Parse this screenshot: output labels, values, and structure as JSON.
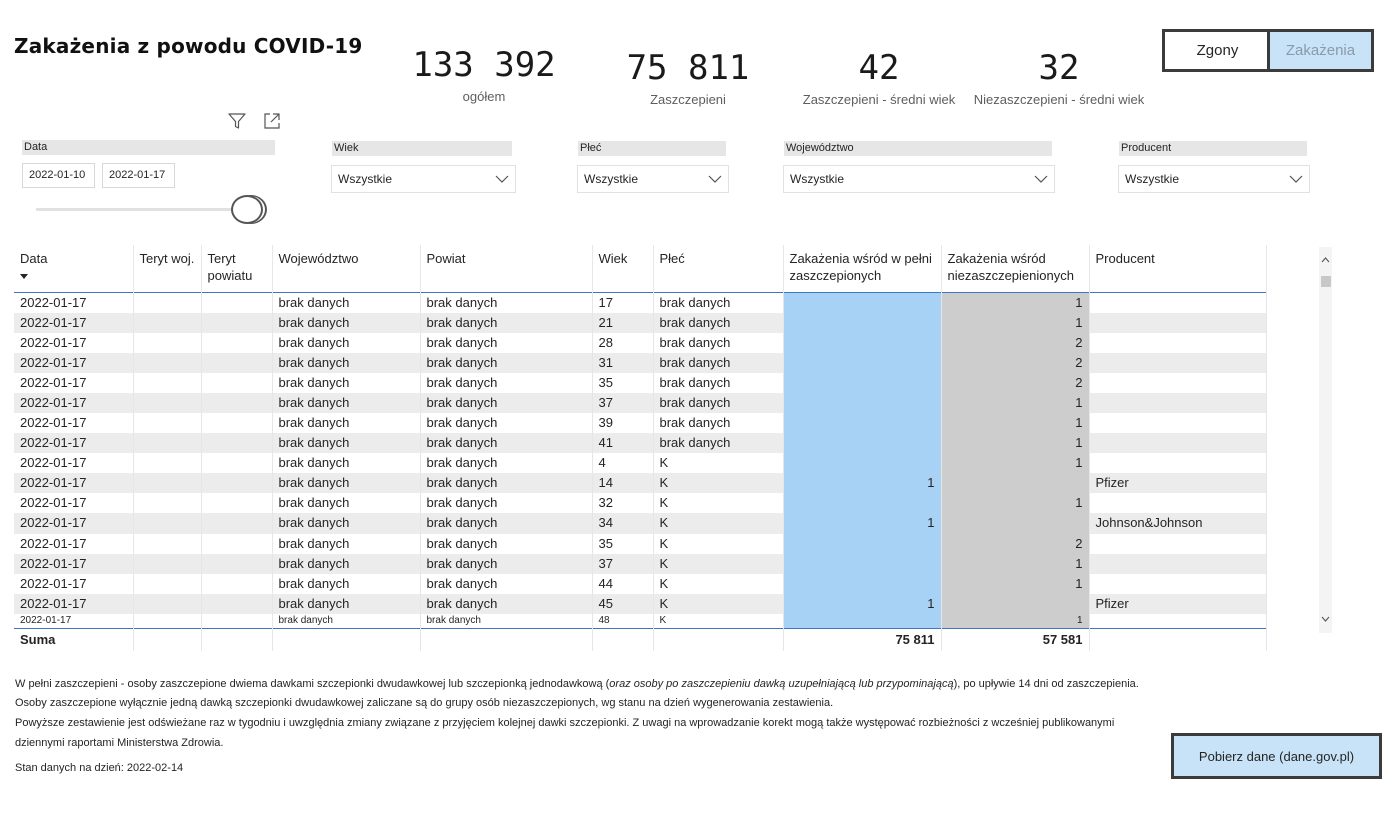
{
  "title": "Zakażenia z powodu COVID-19",
  "kpis": [
    {
      "value": "133 392",
      "label": "ogółem"
    },
    {
      "value": "75 811",
      "label": "Zaszczepieni"
    },
    {
      "value": "42",
      "label": "Zaszczepieni - średni wiek"
    },
    {
      "value": "32",
      "label": "Niezaszczepieni - średni wiek"
    }
  ],
  "toggle": {
    "left": "Zgony",
    "right": "Zakażenia",
    "active": "Zakażenia"
  },
  "icons": {
    "filter": "filter-icon",
    "focus": "focus-mode-icon"
  },
  "slicers": {
    "date": {
      "label": "Data",
      "from": "2022-01-10",
      "to": "2022-01-17"
    },
    "age": {
      "label": "Wiek",
      "value": "Wszystkie"
    },
    "sex": {
      "label": "Płeć",
      "value": "Wszystkie"
    },
    "voivodeship": {
      "label": "Województwo",
      "value": "Wszystkie"
    },
    "producer": {
      "label": "Producent",
      "value": "Wszystkie"
    }
  },
  "table": {
    "columns": [
      "Data",
      "Teryt woj.",
      "Teryt powiatu",
      "Województwo",
      "Powiat",
      "Wiek",
      "Płeć",
      "Zakażenia wśród w pełni zaszczepionych",
      "Zakażenia wśród niezaszczepienionych",
      "Producent"
    ],
    "rows": [
      [
        "2022-01-17",
        "",
        "",
        "brak danych",
        "brak danych",
        "17",
        "brak danych",
        "",
        "1",
        ""
      ],
      [
        "2022-01-17",
        "",
        "",
        "brak danych",
        "brak danych",
        "21",
        "brak danych",
        "",
        "1",
        ""
      ],
      [
        "2022-01-17",
        "",
        "",
        "brak danych",
        "brak danych",
        "28",
        "brak danych",
        "",
        "2",
        ""
      ],
      [
        "2022-01-17",
        "",
        "",
        "brak danych",
        "brak danych",
        "31",
        "brak danych",
        "",
        "2",
        ""
      ],
      [
        "2022-01-17",
        "",
        "",
        "brak danych",
        "brak danych",
        "35",
        "brak danych",
        "",
        "2",
        ""
      ],
      [
        "2022-01-17",
        "",
        "",
        "brak danych",
        "brak danych",
        "37",
        "brak danych",
        "",
        "1",
        ""
      ],
      [
        "2022-01-17",
        "",
        "",
        "brak danych",
        "brak danych",
        "39",
        "brak danych",
        "",
        "1",
        ""
      ],
      [
        "2022-01-17",
        "",
        "",
        "brak danych",
        "brak danych",
        "41",
        "brak danych",
        "",
        "1",
        ""
      ],
      [
        "2022-01-17",
        "",
        "",
        "brak danych",
        "brak danych",
        "4",
        "K",
        "",
        "1",
        ""
      ],
      [
        "2022-01-17",
        "",
        "",
        "brak danych",
        "brak danych",
        "14",
        "K",
        "1",
        "",
        "Pfizer"
      ],
      [
        "2022-01-17",
        "",
        "",
        "brak danych",
        "brak danych",
        "32",
        "K",
        "",
        "1",
        ""
      ],
      [
        "2022-01-17",
        "",
        "",
        "brak danych",
        "brak danych",
        "34",
        "K",
        "1",
        "",
        "Johnson&Johnson"
      ],
      [
        "2022-01-17",
        "",
        "",
        "brak danych",
        "brak danych",
        "35",
        "K",
        "",
        "2",
        ""
      ],
      [
        "2022-01-17",
        "",
        "",
        "brak danych",
        "brak danych",
        "37",
        "K",
        "",
        "1",
        ""
      ],
      [
        "2022-01-17",
        "",
        "",
        "brak danych",
        "brak danych",
        "44",
        "K",
        "",
        "1",
        ""
      ],
      [
        "2022-01-17",
        "",
        "",
        "brak danych",
        "brak danych",
        "45",
        "K",
        "1",
        "",
        "Pfizer"
      ],
      [
        "2022-01-17",
        "",
        "",
        "brak danych",
        "brak danych",
        "48",
        "K",
        "",
        "1",
        ""
      ]
    ],
    "total": {
      "label": "Suma",
      "vaccinated": "75 811",
      "unvaccinated": "57 581"
    }
  },
  "notes": {
    "line1_a": "W pełni zaszczepieni - osoby zaszczepione dwiema dawkami szczepionki dwudawkowej lub szczepionką jednodawkową (",
    "line1_b": "oraz osoby po zaszczepieniu dawką uzupełniającą lub przypominającą",
    "line1_c": "), po upływie 14 dni od zaszczepienia.",
    "line2": "Osoby zaszczepione wyłącznie jedną dawką szczepionki dwudawkowej zaliczane są do grupy osób niezaszczepionych, wg stanu na dzień wygenerowania zestawienia.",
    "line3": "Powyższe zestawienie jest odświeżane raz w tygodniu i uwzględnia zmiany związane z przyjęciem kolejnej dawki szczepionki. Z uwagi na wprowadzanie korekt mogą także występować rozbieżności z wcześniej publikowanymi",
    "line4": "dziennymi raportami Ministerstwa Zdrowia.",
    "status": "Stan danych na dzień: 2022-02-14"
  },
  "download_button": "Pobierz dane (dane.gov.pl)",
  "colors": {
    "vaccinated_bg": "#a8d1f6",
    "unvaccinated_bg": "#cdcdcd",
    "active_toggle_bg": "#c8e3f8",
    "header_line": "#3b78c2"
  }
}
